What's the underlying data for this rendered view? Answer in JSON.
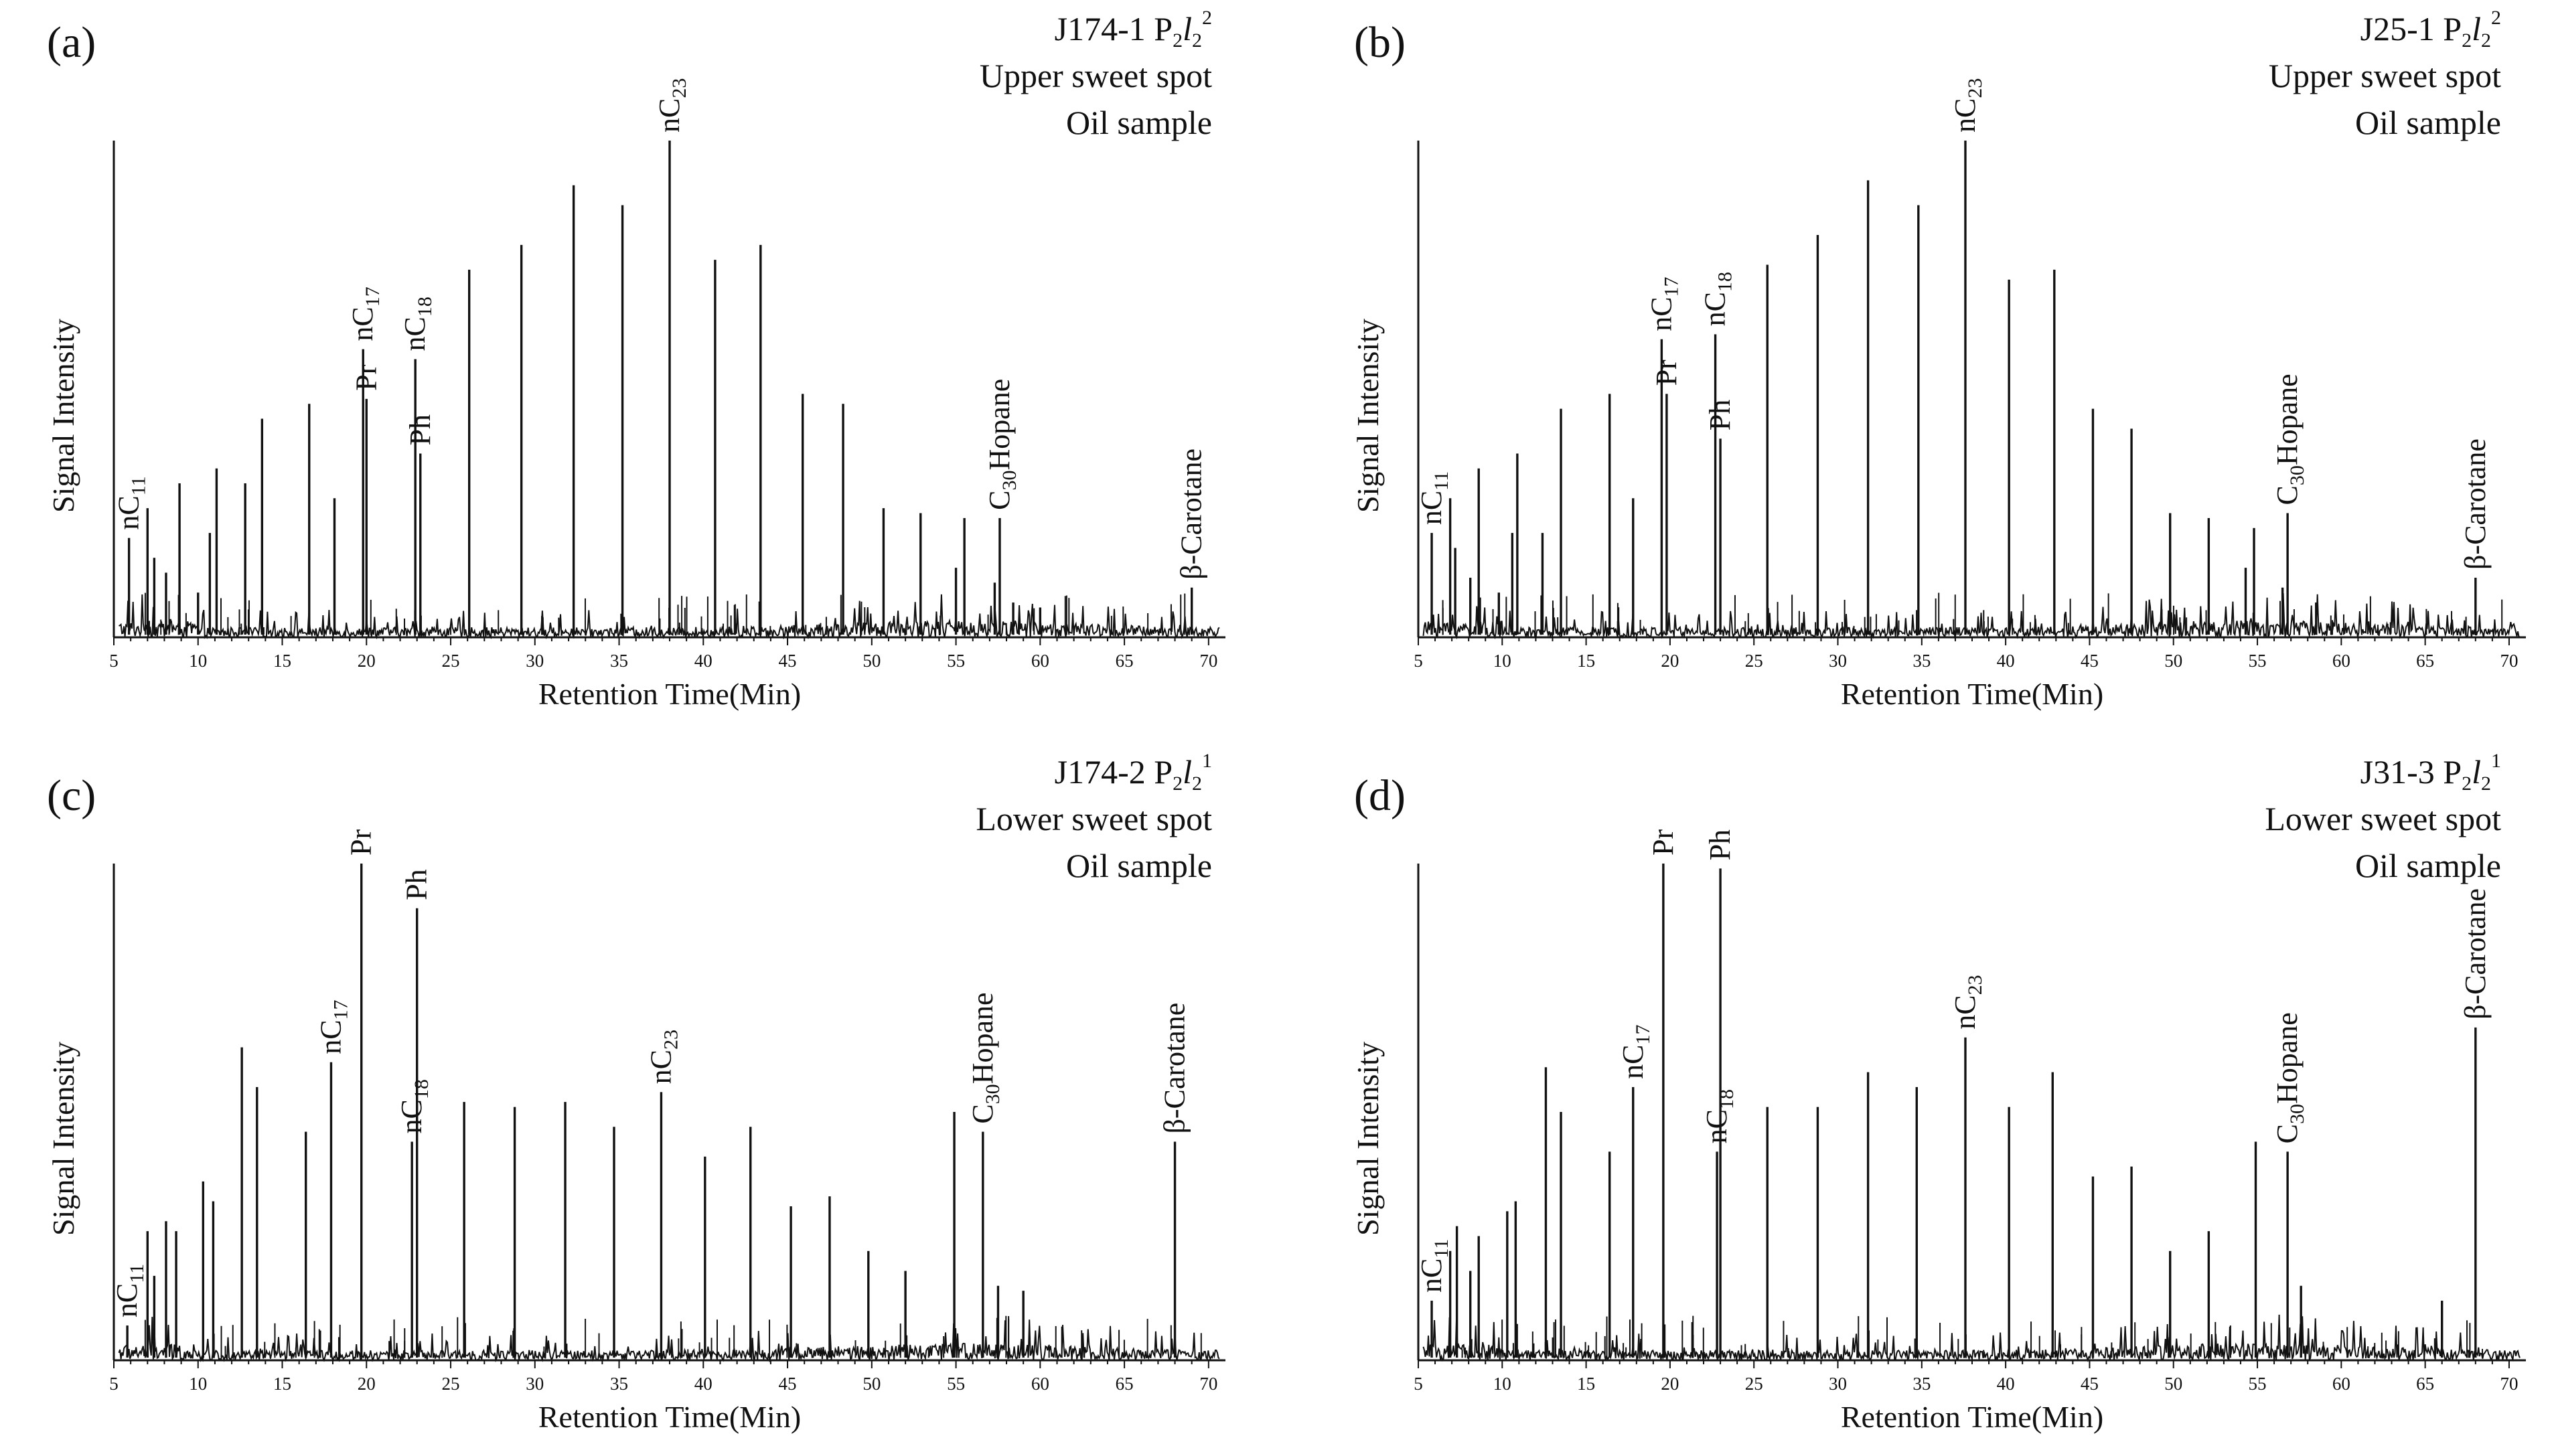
{
  "figure": {
    "chart_data": [
      {
        "type": "line",
        "panel": "(a)",
        "title": "J174-1 P2l2 2 — Upper sweet spot Oil sample",
        "well": "J174-1",
        "formation": {
          "text": "P",
          "sub1": "2",
          "italic": "l",
          "sub2": "2",
          "sup": "2"
        },
        "info_lines": [
          "Upper sweet spot",
          "Oil sample"
        ],
        "xlabel": "Retention Time(Min)",
        "ylabel": "Signal Intensity",
        "xlim": [
          5,
          71
        ],
        "ylim": [
          0,
          100
        ],
        "xticks": [
          5,
          10,
          15,
          20,
          25,
          30,
          35,
          40,
          45,
          50,
          55,
          60,
          65,
          70
        ],
        "peaks": [
          {
            "x": 5.9,
            "y": 20
          },
          {
            "x": 7.0,
            "y": 26
          },
          {
            "x": 7.4,
            "y": 16
          },
          {
            "x": 8.1,
            "y": 13
          },
          {
            "x": 8.9,
            "y": 31
          },
          {
            "x": 10.0,
            "y": 9
          },
          {
            "x": 10.7,
            "y": 21
          },
          {
            "x": 11.1,
            "y": 34
          },
          {
            "x": 12.8,
            "y": 31
          },
          {
            "x": 13.8,
            "y": 44
          },
          {
            "x": 16.6,
            "y": 47
          },
          {
            "x": 18.1,
            "y": 28
          },
          {
            "x": 19.8,
            "y": 58
          },
          {
            "x": 20.0,
            "y": 48
          },
          {
            "x": 22.9,
            "y": 56
          },
          {
            "x": 23.2,
            "y": 37
          },
          {
            "x": 26.1,
            "y": 74
          },
          {
            "x": 29.2,
            "y": 79
          },
          {
            "x": 32.3,
            "y": 91
          },
          {
            "x": 35.2,
            "y": 87
          },
          {
            "x": 38.0,
            "y": 100
          },
          {
            "x": 40.7,
            "y": 76
          },
          {
            "x": 43.4,
            "y": 79
          },
          {
            "x": 45.9,
            "y": 49
          },
          {
            "x": 48.3,
            "y": 47
          },
          {
            "x": 50.7,
            "y": 26
          },
          {
            "x": 52.9,
            "y": 25
          },
          {
            "x": 55.0,
            "y": 14
          },
          {
            "x": 55.5,
            "y": 24
          },
          {
            "x": 57.3,
            "y": 11
          },
          {
            "x": 57.6,
            "y": 24
          },
          {
            "x": 58.4,
            "y": 7
          },
          {
            "x": 60.0,
            "y": 6
          },
          {
            "x": 69.0,
            "y": 10
          }
        ],
        "labels": [
          {
            "x": 5.9,
            "y": 20,
            "main": "nC",
            "sub": "11"
          },
          {
            "x": 19.8,
            "y": 58,
            "main": "nC",
            "sub": "17"
          },
          {
            "x": 20.0,
            "y": 48,
            "main": "Pr",
            "sub": ""
          },
          {
            "x": 22.9,
            "y": 56,
            "main": "nC",
            "sub": "18"
          },
          {
            "x": 23.2,
            "y": 37,
            "main": "Ph",
            "sub": ""
          },
          {
            "x": 38.0,
            "y": 100,
            "main": "nC",
            "sub": "23"
          },
          {
            "x": 57.6,
            "y": 24,
            "main": "C",
            "sub": "30",
            "tail": "Hopane"
          },
          {
            "x": 69.0,
            "y": 10,
            "main": "β-Carotane",
            "sub": ""
          }
        ]
      },
      {
        "type": "line",
        "panel": "(b)",
        "title": "J25-1 P2l2 2 — Upper sweet spot Oil sample",
        "well": "J25-1",
        "formation": {
          "text": "P",
          "sub1": "2",
          "italic": "l",
          "sub2": "2",
          "sup": "2"
        },
        "info_lines": [
          "Upper sweet spot",
          "Oil sample"
        ],
        "xlabel": "Retention Time(Min)",
        "ylabel": "Signal Intensity",
        "xlim": [
          5,
          71
        ],
        "ylim": [
          0,
          100
        ],
        "xticks": [
          5,
          10,
          15,
          20,
          25,
          30,
          35,
          40,
          45,
          50,
          55,
          60,
          65,
          70
        ],
        "peaks": [
          {
            "x": 5.8,
            "y": 21
          },
          {
            "x": 6.9,
            "y": 28
          },
          {
            "x": 7.2,
            "y": 18
          },
          {
            "x": 8.1,
            "y": 12
          },
          {
            "x": 8.6,
            "y": 34
          },
          {
            "x": 9.8,
            "y": 9
          },
          {
            "x": 10.6,
            "y": 21
          },
          {
            "x": 10.9,
            "y": 37
          },
          {
            "x": 12.4,
            "y": 21
          },
          {
            "x": 13.5,
            "y": 46
          },
          {
            "x": 16.4,
            "y": 49
          },
          {
            "x": 17.8,
            "y": 28
          },
          {
            "x": 19.5,
            "y": 60
          },
          {
            "x": 19.8,
            "y": 49
          },
          {
            "x": 22.7,
            "y": 61
          },
          {
            "x": 23.0,
            "y": 40
          },
          {
            "x": 25.8,
            "y": 75
          },
          {
            "x": 28.8,
            "y": 81
          },
          {
            "x": 31.8,
            "y": 92
          },
          {
            "x": 34.8,
            "y": 87
          },
          {
            "x": 37.6,
            "y": 100
          },
          {
            "x": 40.2,
            "y": 72
          },
          {
            "x": 42.9,
            "y": 74
          },
          {
            "x": 45.2,
            "y": 46
          },
          {
            "x": 47.5,
            "y": 42
          },
          {
            "x": 49.8,
            "y": 25
          },
          {
            "x": 52.1,
            "y": 24
          },
          {
            "x": 54.3,
            "y": 14
          },
          {
            "x": 54.8,
            "y": 22
          },
          {
            "x": 56.5,
            "y": 10
          },
          {
            "x": 56.8,
            "y": 25
          },
          {
            "x": 58.5,
            "y": 7
          },
          {
            "x": 68.0,
            "y": 12
          }
        ],
        "labels": [
          {
            "x": 5.8,
            "y": 21,
            "main": "nC",
            "sub": "11"
          },
          {
            "x": 19.5,
            "y": 60,
            "main": "nC",
            "sub": "17"
          },
          {
            "x": 19.8,
            "y": 49,
            "main": "Pr",
            "sub": ""
          },
          {
            "x": 22.7,
            "y": 61,
            "main": "nC",
            "sub": "18"
          },
          {
            "x": 23.0,
            "y": 40,
            "main": "Ph",
            "sub": ""
          },
          {
            "x": 37.6,
            "y": 100,
            "main": "nC",
            "sub": "23"
          },
          {
            "x": 56.8,
            "y": 25,
            "main": "C",
            "sub": "30",
            "tail": "Hopane"
          },
          {
            "x": 68.0,
            "y": 12,
            "main": "β-Carotane",
            "sub": ""
          }
        ]
      },
      {
        "type": "line",
        "panel": "(c)",
        "title": "J174-2 P2l2 1 — Lower sweet spot Oil sample",
        "well": "J174-2",
        "formation": {
          "text": "P",
          "sub1": "2",
          "italic": "l",
          "sub2": "2",
          "sup": "1"
        },
        "info_lines": [
          "Lower sweet spot",
          "Oil sample"
        ],
        "xlabel": "Retention Time(Min)",
        "ylabel": "Signal Intensity",
        "xlim": [
          5,
          71
        ],
        "ylim": [
          0,
          100
        ],
        "xticks": [
          5,
          10,
          15,
          20,
          25,
          30,
          35,
          40,
          45,
          50,
          55,
          60,
          65,
          70
        ],
        "peaks": [
          {
            "x": 5.8,
            "y": 7
          },
          {
            "x": 7.0,
            "y": 26
          },
          {
            "x": 7.4,
            "y": 17
          },
          {
            "x": 8.1,
            "y": 28
          },
          {
            "x": 8.7,
            "y": 26
          },
          {
            "x": 10.3,
            "y": 36
          },
          {
            "x": 10.9,
            "y": 32
          },
          {
            "x": 12.6,
            "y": 63
          },
          {
            "x": 13.5,
            "y": 55
          },
          {
            "x": 16.4,
            "y": 46
          },
          {
            "x": 17.9,
            "y": 60
          },
          {
            "x": 19.7,
            "y": 100
          },
          {
            "x": 22.7,
            "y": 44
          },
          {
            "x": 23.0,
            "y": 91
          },
          {
            "x": 25.8,
            "y": 52
          },
          {
            "x": 28.8,
            "y": 51
          },
          {
            "x": 31.8,
            "y": 52
          },
          {
            "x": 34.7,
            "y": 47
          },
          {
            "x": 37.5,
            "y": 54
          },
          {
            "x": 40.1,
            "y": 41
          },
          {
            "x": 42.8,
            "y": 47
          },
          {
            "x": 45.2,
            "y": 31
          },
          {
            "x": 47.5,
            "y": 33
          },
          {
            "x": 49.8,
            "y": 22
          },
          {
            "x": 52.0,
            "y": 18
          },
          {
            "x": 54.9,
            "y": 50
          },
          {
            "x": 56.6,
            "y": 46
          },
          {
            "x": 57.5,
            "y": 15
          },
          {
            "x": 59.0,
            "y": 14
          },
          {
            "x": 68.0,
            "y": 44
          }
        ],
        "labels": [
          {
            "x": 5.8,
            "y": 7,
            "main": "nC",
            "sub": "11"
          },
          {
            "x": 17.9,
            "y": 60,
            "main": "nC",
            "sub": "17"
          },
          {
            "x": 19.7,
            "y": 100,
            "main": "Pr",
            "sub": ""
          },
          {
            "x": 22.7,
            "y": 44,
            "main": "nC",
            "sub": "18"
          },
          {
            "x": 23.0,
            "y": 91,
            "main": "Ph",
            "sub": ""
          },
          {
            "x": 37.5,
            "y": 54,
            "main": "nC",
            "sub": "23"
          },
          {
            "x": 56.6,
            "y": 46,
            "main": "C",
            "sub": "30",
            "tail": "Hopane"
          },
          {
            "x": 68.0,
            "y": 44,
            "main": "β-Carotane",
            "sub": ""
          }
        ]
      },
      {
        "type": "line",
        "panel": "(d)",
        "title": "J31-3 P2l2 1 — Lower sweet spot Oil sample",
        "well": "J31-3",
        "formation": {
          "text": "P",
          "sub1": "2",
          "italic": "l",
          "sub2": "2",
          "sup": "1"
        },
        "info_lines": [
          "Lower sweet spot",
          "Oil sample"
        ],
        "xlabel": "Retention Time(Min)",
        "ylabel": "Signal Intensity",
        "xlim": [
          5,
          71
        ],
        "ylim": [
          0,
          100
        ],
        "xticks": [
          5,
          10,
          15,
          20,
          25,
          30,
          35,
          40,
          45,
          50,
          55,
          60,
          65,
          70
        ],
        "peaks": [
          {
            "x": 5.8,
            "y": 12
          },
          {
            "x": 6.9,
            "y": 22
          },
          {
            "x": 7.3,
            "y": 27
          },
          {
            "x": 8.1,
            "y": 18
          },
          {
            "x": 8.6,
            "y": 25
          },
          {
            "x": 10.3,
            "y": 30
          },
          {
            "x": 10.8,
            "y": 32
          },
          {
            "x": 12.6,
            "y": 59
          },
          {
            "x": 13.5,
            "y": 50
          },
          {
            "x": 16.4,
            "y": 42
          },
          {
            "x": 17.8,
            "y": 55
          },
          {
            "x": 19.6,
            "y": 100
          },
          {
            "x": 22.8,
            "y": 42
          },
          {
            "x": 23.0,
            "y": 99
          },
          {
            "x": 25.8,
            "y": 51
          },
          {
            "x": 28.8,
            "y": 51
          },
          {
            "x": 31.8,
            "y": 58
          },
          {
            "x": 34.7,
            "y": 55
          },
          {
            "x": 37.6,
            "y": 65
          },
          {
            "x": 40.2,
            "y": 51
          },
          {
            "x": 42.8,
            "y": 58
          },
          {
            "x": 45.2,
            "y": 37
          },
          {
            "x": 47.5,
            "y": 39
          },
          {
            "x": 49.8,
            "y": 22
          },
          {
            "x": 52.1,
            "y": 26
          },
          {
            "x": 54.9,
            "y": 44
          },
          {
            "x": 56.8,
            "y": 42
          },
          {
            "x": 57.6,
            "y": 15
          },
          {
            "x": 66.0,
            "y": 12
          },
          {
            "x": 68.0,
            "y": 67
          }
        ],
        "labels": [
          {
            "x": 5.8,
            "y": 12,
            "main": "nC",
            "sub": "11"
          },
          {
            "x": 17.8,
            "y": 55,
            "main": "nC",
            "sub": "17"
          },
          {
            "x": 19.6,
            "y": 100,
            "main": "Pr",
            "sub": ""
          },
          {
            "x": 22.8,
            "y": 42,
            "main": "nC",
            "sub": "18"
          },
          {
            "x": 23.0,
            "y": 99,
            "main": "Ph",
            "sub": ""
          },
          {
            "x": 37.6,
            "y": 65,
            "main": "nC",
            "sub": "23"
          },
          {
            "x": 56.8,
            "y": 42,
            "main": "C",
            "sub": "30",
            "tail": "Hopane"
          },
          {
            "x": 68.0,
            "y": 67,
            "main": "β-Carotane",
            "sub": ""
          }
        ]
      }
    ]
  },
  "colors": {
    "ink": "#111111",
    "background": "#ffffff"
  }
}
